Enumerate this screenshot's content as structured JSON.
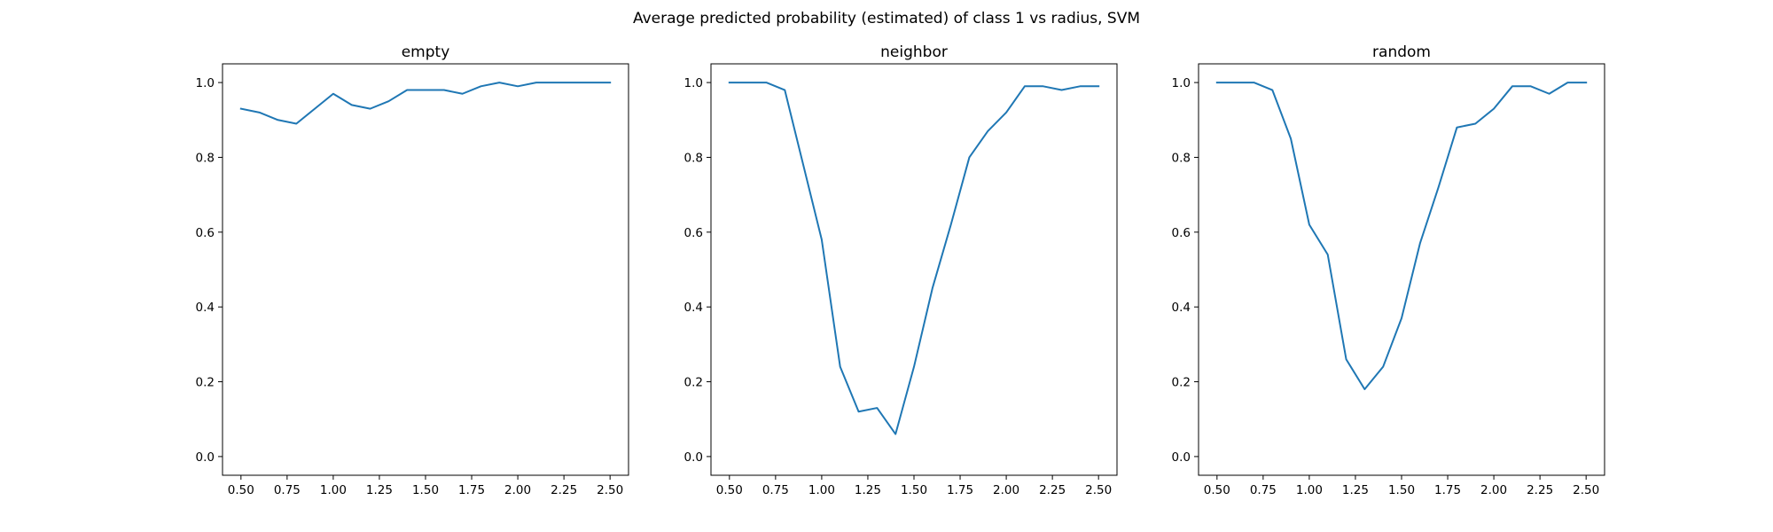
{
  "figure": {
    "title": "Average predicted probability (estimated) of class 1 vs radius, SVM"
  },
  "colors": {
    "line": "#1f77b4",
    "axes": "#000000",
    "background": "#ffffff"
  },
  "chart_data": [
    {
      "type": "line",
      "title": "empty",
      "xlabel": "",
      "ylabel": "",
      "xlim": [
        0.4,
        2.6
      ],
      "ylim": [
        -0.05,
        1.05
      ],
      "xticks": [
        0.5,
        0.75,
        1.0,
        1.25,
        1.5,
        1.75,
        2.0,
        2.25,
        2.5
      ],
      "xtick_labels": [
        "0.50",
        "0.75",
        "1.00",
        "1.25",
        "1.50",
        "1.75",
        "2.00",
        "2.25",
        "2.50"
      ],
      "yticks": [
        0.0,
        0.2,
        0.4,
        0.6,
        0.8,
        1.0
      ],
      "ytick_labels": [
        "0.0",
        "0.2",
        "0.4",
        "0.6",
        "0.8",
        "1.0"
      ],
      "grid": false,
      "series": [
        {
          "x": [
            0.5,
            0.6,
            0.7,
            0.8,
            0.9,
            1.0,
            1.1,
            1.2,
            1.3,
            1.4,
            1.5,
            1.6,
            1.7,
            1.8,
            1.9,
            2.0,
            2.1,
            2.2,
            2.3,
            2.4,
            2.5
          ],
          "y": [
            0.93,
            0.92,
            0.9,
            0.89,
            0.93,
            0.97,
            0.94,
            0.93,
            0.95,
            0.98,
            0.98,
            0.98,
            0.97,
            0.99,
            1.0,
            0.99,
            1.0,
            1.0,
            1.0,
            1.0,
            1.0
          ]
        }
      ]
    },
    {
      "type": "line",
      "title": "neighbor",
      "xlabel": "",
      "ylabel": "",
      "xlim": [
        0.4,
        2.6
      ],
      "ylim": [
        -0.05,
        1.05
      ],
      "xticks": [
        0.5,
        0.75,
        1.0,
        1.25,
        1.5,
        1.75,
        2.0,
        2.25,
        2.5
      ],
      "xtick_labels": [
        "0.50",
        "0.75",
        "1.00",
        "1.25",
        "1.50",
        "1.75",
        "2.00",
        "2.25",
        "2.50"
      ],
      "yticks": [
        0.0,
        0.2,
        0.4,
        0.6,
        0.8,
        1.0
      ],
      "ytick_labels": [
        "0.0",
        "0.2",
        "0.4",
        "0.6",
        "0.8",
        "1.0"
      ],
      "grid": false,
      "series": [
        {
          "x": [
            0.5,
            0.6,
            0.7,
            0.8,
            0.9,
            1.0,
            1.1,
            1.2,
            1.3,
            1.4,
            1.5,
            1.6,
            1.7,
            1.8,
            1.9,
            2.0,
            2.1,
            2.2,
            2.3,
            2.4,
            2.5
          ],
          "y": [
            1.0,
            1.0,
            1.0,
            0.98,
            0.78,
            0.58,
            0.24,
            0.12,
            0.13,
            0.06,
            0.24,
            0.45,
            0.62,
            0.8,
            0.87,
            0.92,
            0.99,
            0.99,
            0.98,
            0.99,
            0.99
          ]
        }
      ]
    },
    {
      "type": "line",
      "title": "random",
      "xlabel": "",
      "ylabel": "",
      "xlim": [
        0.4,
        2.6
      ],
      "ylim": [
        -0.05,
        1.05
      ],
      "xticks": [
        0.5,
        0.75,
        1.0,
        1.25,
        1.5,
        1.75,
        2.0,
        2.25,
        2.5
      ],
      "xtick_labels": [
        "0.50",
        "0.75",
        "1.00",
        "1.25",
        "1.50",
        "1.75",
        "2.00",
        "2.25",
        "2.50"
      ],
      "yticks": [
        0.0,
        0.2,
        0.4,
        0.6,
        0.8,
        1.0
      ],
      "ytick_labels": [
        "0.0",
        "0.2",
        "0.4",
        "0.6",
        "0.8",
        "1.0"
      ],
      "grid": false,
      "series": [
        {
          "x": [
            0.5,
            0.6,
            0.7,
            0.8,
            0.9,
            1.0,
            1.1,
            1.2,
            1.3,
            1.4,
            1.5,
            1.6,
            1.7,
            1.8,
            1.9,
            2.0,
            2.1,
            2.2,
            2.3,
            2.4,
            2.5
          ],
          "y": [
            1.0,
            1.0,
            1.0,
            0.98,
            0.85,
            0.62,
            0.54,
            0.26,
            0.18,
            0.24,
            0.37,
            0.57,
            0.72,
            0.88,
            0.89,
            0.93,
            0.99,
            0.99,
            0.97,
            1.0,
            1.0
          ]
        }
      ]
    }
  ]
}
